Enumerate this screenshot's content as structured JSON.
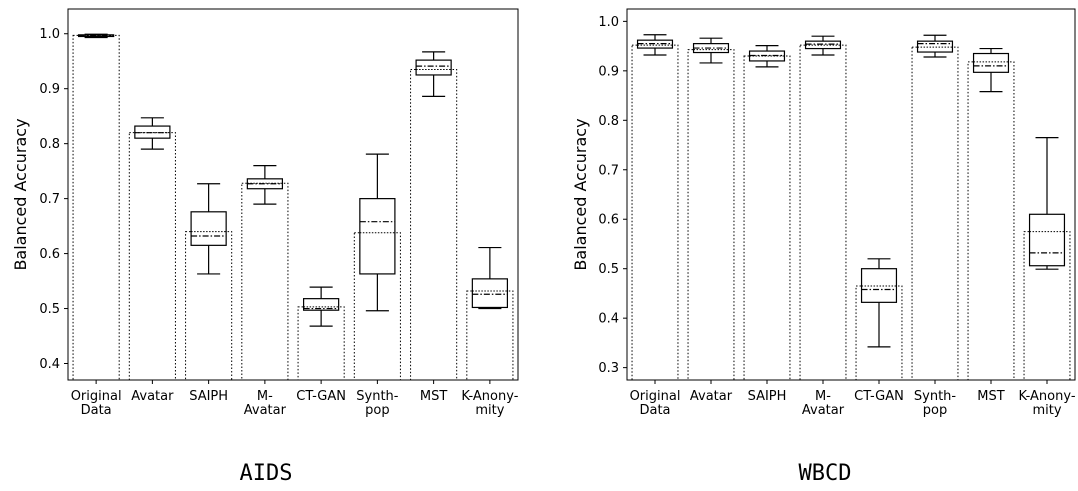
{
  "chart_data": [
    {
      "type": "box",
      "caption": "AIDS",
      "ylabel": "Balanced Accuracy",
      "ylim": [
        0.37,
        1.045
      ],
      "yticks": [
        "0.4",
        "0.5",
        "0.6",
        "0.7",
        "0.8",
        "0.9",
        "1.0"
      ],
      "categories": [
        [
          "Original",
          "Data"
        ],
        [
          "Avatar"
        ],
        [
          "SAIPH"
        ],
        [
          "M-",
          "Avatar"
        ],
        [
          "CT-GAN"
        ],
        [
          "Synth-",
          "pop"
        ],
        [
          "MST"
        ],
        [
          "K-Anony-",
          "mity"
        ]
      ],
      "series": [
        {
          "whisker_low": 0.993,
          "q1": 0.995,
          "median": 0.997,
          "mean": 0.997,
          "q3": 0.998,
          "whisker_high": 0.999
        },
        {
          "whisker_low": 0.79,
          "q1": 0.81,
          "median": 0.82,
          "mean": 0.82,
          "q3": 0.832,
          "whisker_high": 0.847
        },
        {
          "whisker_low": 0.563,
          "q1": 0.615,
          "median": 0.632,
          "mean": 0.64,
          "q3": 0.676,
          "whisker_high": 0.727
        },
        {
          "whisker_low": 0.69,
          "q1": 0.718,
          "median": 0.727,
          "mean": 0.728,
          "q3": 0.736,
          "whisker_high": 0.76
        },
        {
          "whisker_low": 0.468,
          "q1": 0.497,
          "median": 0.5,
          "mean": 0.503,
          "q3": 0.518,
          "whisker_high": 0.539
        },
        {
          "whisker_low": 0.496,
          "q1": 0.563,
          "median": 0.658,
          "mean": 0.638,
          "q3": 0.7,
          "whisker_high": 0.781
        },
        {
          "whisker_low": 0.886,
          "q1": 0.925,
          "median": 0.941,
          "mean": 0.935,
          "q3": 0.952,
          "whisker_high": 0.967
        },
        {
          "whisker_low": 0.5,
          "q1": 0.502,
          "median": 0.526,
          "mean": 0.532,
          "q3": 0.554,
          "whisker_high": 0.611
        }
      ]
    },
    {
      "type": "box",
      "caption": "WBCD",
      "ylabel": "Balanced Accuracy",
      "ylim": [
        0.275,
        1.025
      ],
      "yticks": [
        "0.3",
        "0.4",
        "0.5",
        "0.6",
        "0.7",
        "0.8",
        "0.9",
        "1.0"
      ],
      "categories": [
        [
          "Original",
          "Data"
        ],
        [
          "Avatar"
        ],
        [
          "SAIPH"
        ],
        [
          "M-",
          "Avatar"
        ],
        [
          "CT-GAN"
        ],
        [
          "Synth-",
          "pop"
        ],
        [
          "MST"
        ],
        [
          "K-Anony-",
          "mity"
        ]
      ],
      "series": [
        {
          "whisker_low": 0.932,
          "q1": 0.946,
          "median": 0.955,
          "mean": 0.952,
          "q3": 0.962,
          "whisker_high": 0.973
        },
        {
          "whisker_low": 0.916,
          "q1": 0.937,
          "median": 0.946,
          "mean": 0.943,
          "q3": 0.955,
          "whisker_high": 0.966
        },
        {
          "whisker_low": 0.908,
          "q1": 0.92,
          "median": 0.931,
          "mean": 0.93,
          "q3": 0.94,
          "whisker_high": 0.951
        },
        {
          "whisker_low": 0.932,
          "q1": 0.945,
          "median": 0.954,
          "mean": 0.952,
          "q3": 0.96,
          "whisker_high": 0.97
        },
        {
          "whisker_low": 0.342,
          "q1": 0.432,
          "median": 0.458,
          "mean": 0.465,
          "q3": 0.5,
          "whisker_high": 0.52
        },
        {
          "whisker_low": 0.928,
          "q1": 0.938,
          "median": 0.955,
          "mean": 0.948,
          "q3": 0.96,
          "whisker_high": 0.972
        },
        {
          "whisker_low": 0.858,
          "q1": 0.897,
          "median": 0.91,
          "mean": 0.918,
          "q3": 0.935,
          "whisker_high": 0.945
        },
        {
          "whisker_low": 0.499,
          "q1": 0.506,
          "median": 0.532,
          "mean": 0.575,
          "q3": 0.61,
          "whisker_high": 0.765
        }
      ]
    }
  ]
}
